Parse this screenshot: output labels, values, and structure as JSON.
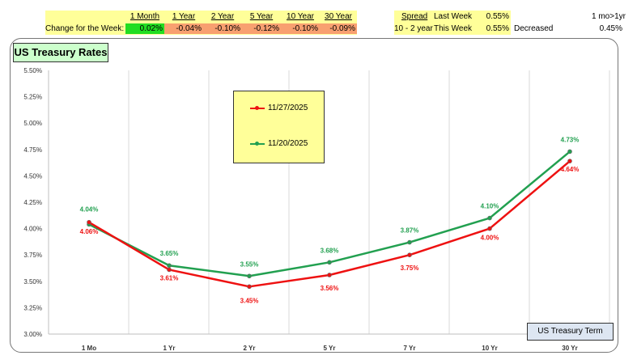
{
  "summary_table": {
    "headers": [
      "1 Month",
      "1 Year",
      "2 Year",
      "5 Year",
      "10 Year",
      "30 Year"
    ],
    "row_label": "Change for the Week:",
    "values": [
      "0.02%",
      "-0.04%",
      "-0.10%",
      "-0.12%",
      "-0.10%",
      "-0.09%"
    ]
  },
  "spread_table": {
    "header": "Spread",
    "row1_label": "Last Week",
    "row1_value": "0.55%",
    "row2_name": "10 - 2 year",
    "row2_label": "This Week",
    "row2_value": "0.55%",
    "status": "Decreased"
  },
  "right_info": {
    "label": "1 mo>1yr",
    "value": "0.45%"
  },
  "chart_data": {
    "type": "line",
    "title": "US Treasury Rates",
    "xlabel": "US Treasury Term",
    "ylabel": "",
    "categories": [
      "1 Mo",
      "1 Yr",
      "2 Yr",
      "5 Yr",
      "7 Yr",
      "10 Yr",
      "30 Yr"
    ],
    "series": [
      {
        "name": "11/27/2025",
        "color": "#ee1111",
        "values": [
          4.06,
          3.61,
          3.45,
          3.56,
          3.75,
          4.0,
          4.64
        ],
        "labels": [
          "4.06%",
          "3.61%",
          "3.45%",
          "3.56%",
          "3.75%",
          "4.00%",
          "4.64%"
        ]
      },
      {
        "name": "11/20/2025",
        "color": "#22a050",
        "values": [
          4.04,
          3.65,
          3.55,
          3.68,
          3.87,
          4.1,
          4.73
        ],
        "labels": [
          "4.04%",
          "3.65%",
          "3.55%",
          "3.68%",
          "3.87%",
          "4.10%",
          "4.73%"
        ]
      }
    ],
    "ylim": [
      3.0,
      5.5
    ],
    "yticks": [
      3.0,
      3.25,
      3.5,
      3.75,
      4.0,
      4.25,
      4.5,
      4.75,
      5.0,
      5.25,
      5.5
    ],
    "ytick_labels": [
      "3.00%",
      "3.25%",
      "3.50%",
      "3.75%",
      "4.00%",
      "4.25%",
      "4.50%",
      "4.75%",
      "5.00%",
      "5.25%",
      "5.50%"
    ],
    "grid": "vertical",
    "legend_position": "top-left"
  }
}
